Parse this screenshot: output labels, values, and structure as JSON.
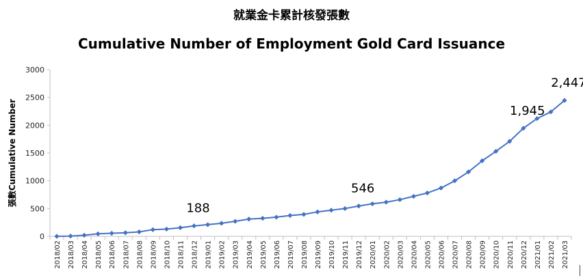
{
  "chart_data": {
    "type": "line",
    "title": "就業金卡累計核發張數",
    "subtitle": "Cumulative Number of Employment Gold Card Issuance",
    "xlabel": "",
    "ylabel": "張數Cumulative Number",
    "ylim": [
      0,
      3000
    ],
    "yticks": [
      "0",
      "500",
      "1000",
      "1500",
      "2000",
      "2500",
      "3000"
    ],
    "grid": false,
    "legend": "none",
    "series_color": "#4472C4",
    "categories": [
      "2018/02",
      "2018/03",
      "2018/04",
      "2018/05",
      "2018/06",
      "2018/07",
      "2018/08",
      "2018/09",
      "2018/10",
      "2018/11",
      "2018/12",
      "2019/01",
      "2019/02",
      "2019/03",
      "2019/04",
      "2019/05",
      "2019/06",
      "2019/07",
      "2019/08",
      "2019/09",
      "2019/10",
      "2019/11",
      "2019/12",
      "2020/01",
      "2020/02",
      "2020/03",
      "2020/04",
      "2020/05",
      "2020/06",
      "2020/07",
      "2020/08",
      "2020/09",
      "2020/10",
      "2020/11",
      "2020/12",
      "2021/01",
      "2021/02",
      "2021/03"
    ],
    "series": [
      {
        "name": "",
        "values": [
          0,
          5,
          20,
          45,
          55,
          65,
          80,
          120,
          130,
          155,
          188,
          210,
          235,
          270,
          310,
          325,
          345,
          375,
          395,
          440,
          470,
          500,
          546,
          585,
          615,
          660,
          720,
          780,
          870,
          1000,
          1160,
          1360,
          1530,
          1710,
          1945,
          2120,
          2240,
          2447
        ]
      }
    ],
    "annotations": [
      {
        "category": "2018/12",
        "text": "188"
      },
      {
        "category": "2019/12",
        "text": "546"
      },
      {
        "category": "2020/12",
        "text": "1,945"
      },
      {
        "category": "2021/03",
        "text": "2,447"
      }
    ]
  }
}
